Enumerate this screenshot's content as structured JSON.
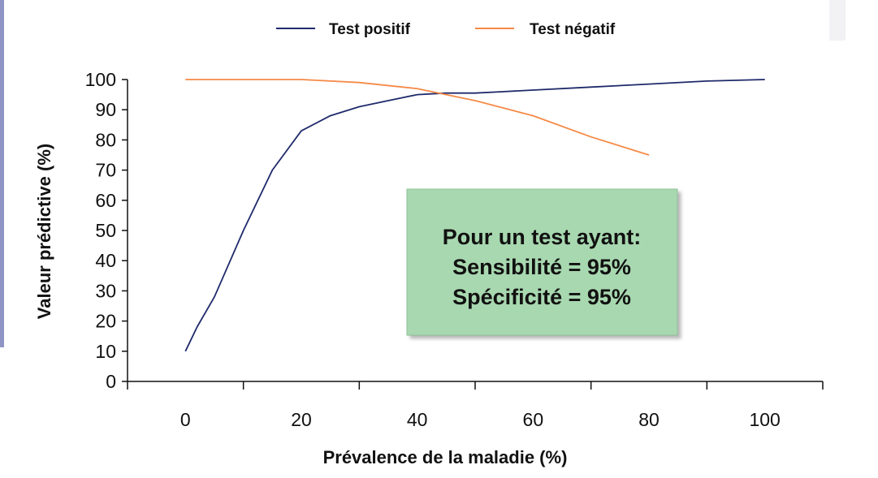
{
  "chart_data": {
    "type": "line",
    "title": "",
    "xlabel": "Prévalence de la maladie (%)",
    "ylabel": "Valeur prédictive  (%)",
    "xlim": [
      -10,
      110
    ],
    "ylim": [
      0,
      100
    ],
    "xticks": [
      0,
      20,
      40,
      60,
      80,
      100
    ],
    "yticks": [
      0,
      10,
      20,
      30,
      40,
      50,
      60,
      70,
      80,
      90,
      100
    ],
    "x_minor_ticks": [
      -10,
      10,
      30,
      50,
      70,
      90,
      110
    ],
    "grid": false,
    "legend_position": "top",
    "series": [
      {
        "name": "Test positif",
        "color": "#1f2a6b",
        "x": [
          0,
          2,
          5,
          10,
          15,
          20,
          25,
          30,
          35,
          40,
          45,
          50,
          55,
          60,
          70,
          80,
          90,
          100
        ],
        "y": [
          10,
          18,
          28,
          50,
          70,
          83,
          88,
          91,
          93,
          95,
          95.5,
          95.5,
          96,
          96.5,
          97.5,
          98.5,
          99.5,
          100
        ]
      },
      {
        "name": "Test négatif",
        "color": "#f58a47",
        "x": [
          0,
          10,
          20,
          30,
          40,
          50,
          60,
          70,
          80
        ],
        "y": [
          100,
          100,
          100,
          99,
          97,
          93,
          88,
          81,
          75
        ]
      }
    ],
    "annotation": {
      "lines": [
        "Pour un test ayant:",
        "Sensibilité = 95%",
        "Spécificité = 95%"
      ],
      "background": "#a8d8b0",
      "border": "#8fbf98"
    }
  }
}
